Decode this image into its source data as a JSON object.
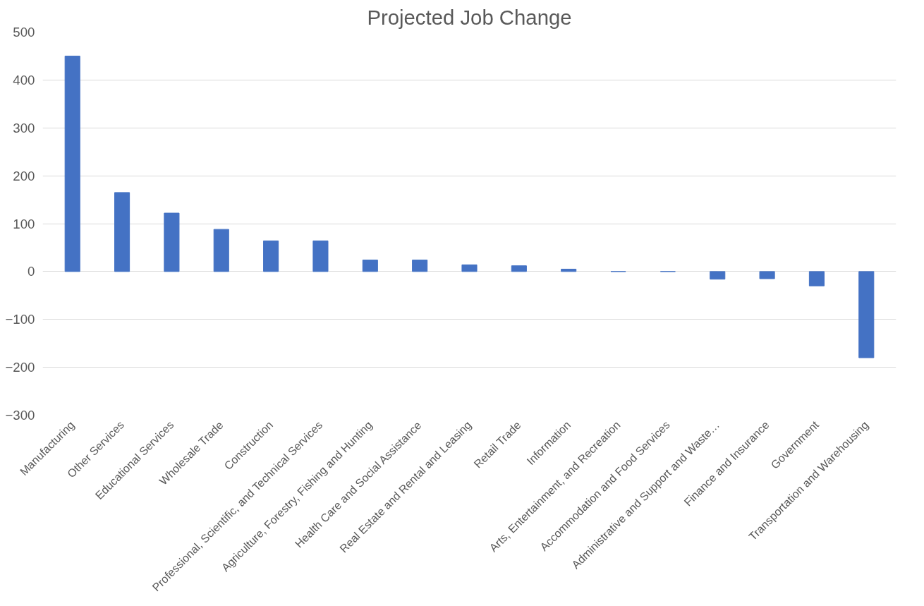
{
  "chart_data": {
    "type": "bar",
    "title": "Projected Job Change",
    "categories": [
      "Manufacturing",
      "Other Services",
      "Educational Services",
      "Wholesale Trade",
      "Construction",
      "Professional, Scientific, and Technical Services",
      "Agriculture, Forestry, Fishing and Hunting",
      "Health Care and Social Assistance",
      "Real Estate and Rental and Leasing",
      "Retail Trade",
      "Information",
      "Arts, Entertainment, and Recreation",
      "Accommodation and Food Services",
      "Administrative and Support and Waste…",
      "Finance and Insurance",
      "Government",
      "Transportation and Warehousing"
    ],
    "values": [
      450,
      165,
      122,
      88,
      64,
      64,
      24,
      24,
      14,
      12,
      5,
      0,
      0,
      -16,
      -15,
      -30,
      -180
    ],
    "color": "#4472c4",
    "ylim": [
      -300,
      500
    ],
    "yticks": [
      -300,
      -200,
      -100,
      0,
      100,
      200,
      300,
      400,
      500
    ],
    "grid": "y"
  }
}
